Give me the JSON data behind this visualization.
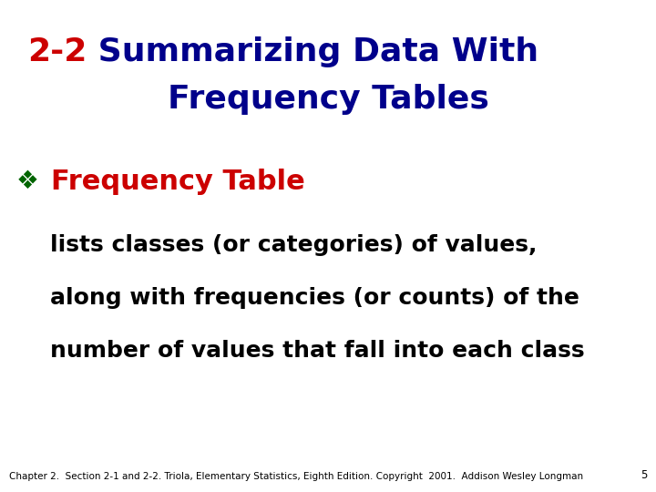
{
  "title_prefix": "2-2",
  "title_rest_line1": " Summarizing Data With",
  "title_line2": "Frequency Tables",
  "title_prefix_color": "#cc0000",
  "title_main_color": "#00008B",
  "bullet_symbol": "❖",
  "bullet_color": "#006400",
  "bullet_label": "Frequency Table",
  "bullet_label_color": "#cc0000",
  "body_lines": [
    "lists classes (or categories) of values,",
    "along with frequencies (or counts) of the",
    "number of values that fall into each class"
  ],
  "body_color": "#000000",
  "footer_text": "Chapter 2.  Section 2-1 and 2-2. Triola, Elementary Statistics, Eighth Edition. Copyright  2001.  Addison Wesley Longman",
  "footer_page": "5",
  "footer_color": "#000000",
  "background_color": "#ffffff",
  "title_fontsize": 26,
  "bullet_fontsize": 20,
  "bullet_label_fontsize": 22,
  "body_fontsize": 18,
  "footer_fontsize": 7.5
}
